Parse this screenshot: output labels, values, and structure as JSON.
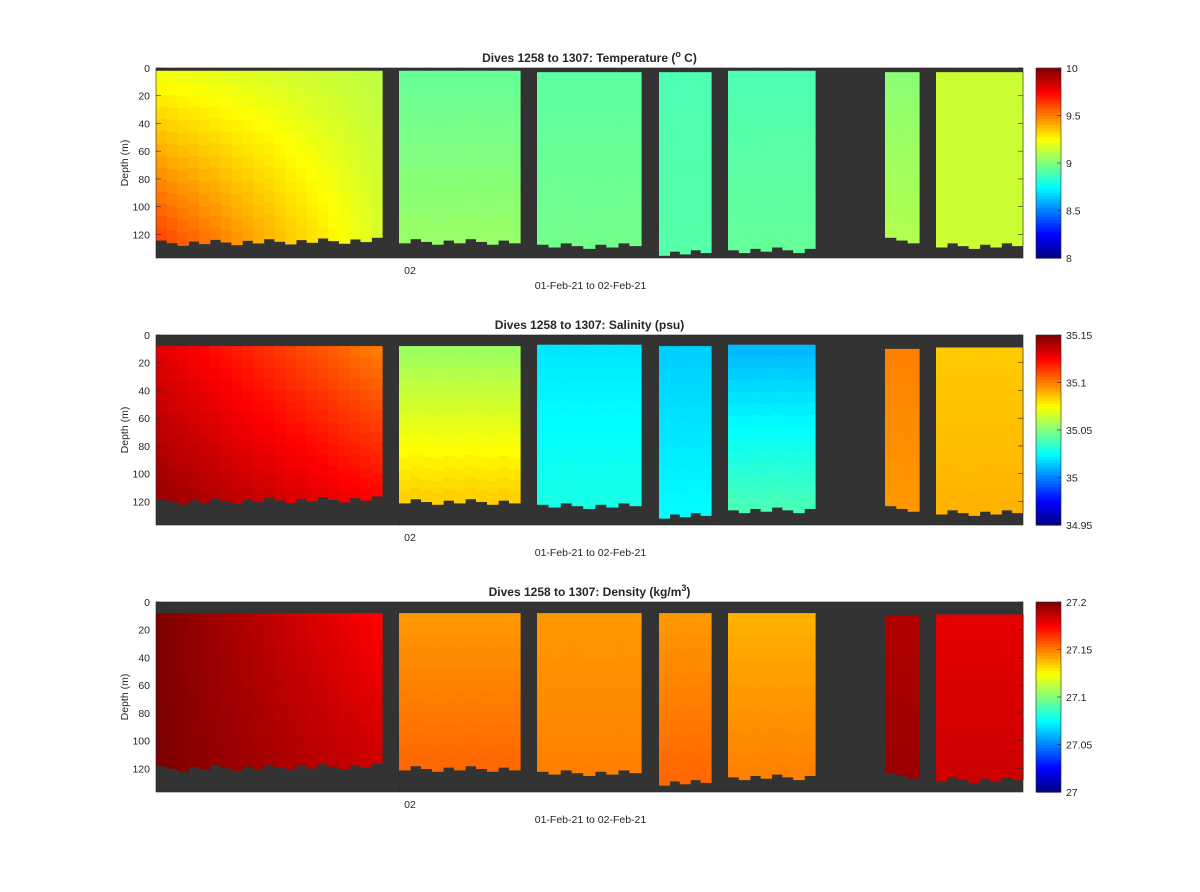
{
  "figure": {
    "background": "#ffffff",
    "no_data_color": "#333333"
  },
  "chart_data": [
    {
      "type": "heatmap",
      "title": "Dives 1258 to 1307: Temperature (",
      "title_sup": "o",
      "title_end": " C)",
      "xlabel": "01-Feb-21 to 02-Feb-21",
      "ylabel": "Depth (m)",
      "ylim": [
        137,
        0
      ],
      "yticks": [
        "0",
        "20",
        "40",
        "60",
        "80",
        "100",
        "120"
      ],
      "xticks": [
        "02"
      ],
      "colorbar": {
        "min": 8,
        "max": 10,
        "colormap": "jet",
        "ticks": [
          "8",
          "8.5",
          "9",
          "9.5",
          "10"
        ]
      },
      "dives": [
        {
          "surface": 2,
          "bottom": 126,
          "top_value": 9.22,
          "bottom_value": 9.62
        },
        {
          "surface": 2,
          "bottom": 124,
          "top_value": 9.12,
          "bottom_value": 9.18
        },
        {
          "surface": 2,
          "bottom": 125,
          "top_value": 8.95,
          "bottom_value": 9.05
        },
        {
          "surface": 3,
          "bottom": 128,
          "top_value": 8.93,
          "bottom_value": 8.98
        },
        {
          "surface": 3,
          "bottom": 133,
          "top_value": 8.9,
          "bottom_value": 8.92
        },
        {
          "surface": 2,
          "bottom": 131,
          "top_value": 8.9,
          "bottom_value": 8.95
        },
        {
          "surface": 3,
          "bottom": 124,
          "top_value": 9.02,
          "bottom_value": 9.1
        },
        {
          "surface": 3,
          "bottom": 128,
          "top_value": 9.15,
          "bottom_value": 9.15
        }
      ]
    },
    {
      "type": "heatmap",
      "title": "Dives 1258 to 1307: Salinity (psu)",
      "xlabel": "01-Feb-21 to 02-Feb-21",
      "ylabel": "Depth (m)",
      "ylim": [
        137,
        0
      ],
      "yticks": [
        "0",
        "20",
        "40",
        "60",
        "80",
        "100",
        "120"
      ],
      "xticks": [
        "02"
      ],
      "colorbar": {
        "min": 34.95,
        "max": 35.15,
        "colormap": "jet",
        "ticks": [
          "34.95",
          "35",
          "35.05",
          "35.1",
          "35.15"
        ]
      },
      "dives": [
        {
          "surface": 8,
          "bottom": 120,
          "top_value": 35.13,
          "bottom_value": 35.145
        },
        {
          "surface": 8,
          "bottom": 118,
          "top_value": 35.1,
          "bottom_value": 35.125
        },
        {
          "surface": 8,
          "bottom": 120,
          "top_value": 35.055,
          "bottom_value": 35.085
        },
        {
          "surface": 7,
          "bottom": 123,
          "top_value": 35.02,
          "bottom_value": 35.03
        },
        {
          "surface": 8,
          "bottom": 130,
          "top_value": 35.015,
          "bottom_value": 35.025
        },
        {
          "surface": 7,
          "bottom": 126,
          "top_value": 35.01,
          "bottom_value": 35.04
        },
        {
          "surface": 10,
          "bottom": 125,
          "top_value": 35.1,
          "bottom_value": 35.095
        },
        {
          "surface": 9,
          "bottom": 128,
          "top_value": 35.085,
          "bottom_value": 35.09
        }
      ]
    },
    {
      "type": "heatmap",
      "title": "Dives 1258 to 1307: Density (kg/m",
      "title_sup": "3",
      "title_end": ")",
      "xlabel": "01-Feb-21 to 02-Feb-21",
      "ylabel": "Depth (m)",
      "ylim": [
        137,
        0
      ],
      "yticks": [
        "0",
        "20",
        "40",
        "60",
        "80",
        "100",
        "120"
      ],
      "xticks": [
        "02"
      ],
      "colorbar": {
        "min": 27,
        "max": 27.2,
        "colormap": "jet",
        "ticks": [
          "27",
          "27.05",
          "27.1",
          "27.15",
          "27.2"
        ]
      },
      "dives": [
        {
          "surface": 8,
          "bottom": 120,
          "top_value": 27.2,
          "bottom_value": 27.2
        },
        {
          "surface": 8,
          "bottom": 118,
          "top_value": 27.175,
          "bottom_value": 27.185
        },
        {
          "surface": 8,
          "bottom": 120,
          "top_value": 27.145,
          "bottom_value": 27.155
        },
        {
          "surface": 8,
          "bottom": 123,
          "top_value": 27.145,
          "bottom_value": 27.15
        },
        {
          "surface": 8,
          "bottom": 130,
          "top_value": 27.145,
          "bottom_value": 27.155
        },
        {
          "surface": 8,
          "bottom": 126,
          "top_value": 27.14,
          "bottom_value": 27.15
        },
        {
          "surface": 10,
          "bottom": 125,
          "top_value": 27.19,
          "bottom_value": 27.195
        },
        {
          "surface": 9,
          "bottom": 128,
          "top_value": 27.18,
          "bottom_value": 27.185
        }
      ]
    }
  ]
}
